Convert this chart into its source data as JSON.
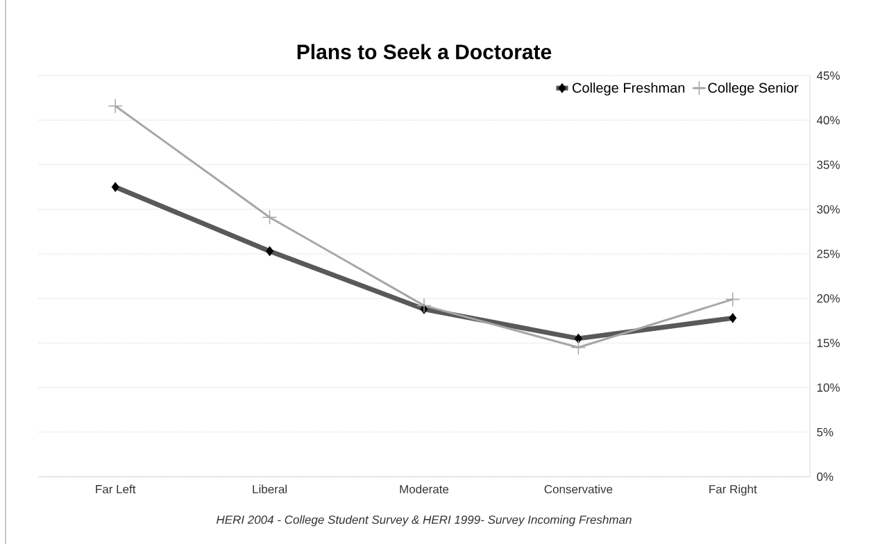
{
  "chart_data": {
    "type": "line",
    "title": "Plans to Seek a Doctorate",
    "categories": [
      "Far Left",
      "Liberal",
      "Moderate",
      "Conservative",
      "Far Right"
    ],
    "series": [
      {
        "name": "College Freshman",
        "color": "#595959",
        "marker": "diamond",
        "values": [
          32.5,
          25.3,
          18.8,
          15.5,
          17.8
        ]
      },
      {
        "name": "College Senior",
        "color": "#a6a6a6",
        "marker": "cross",
        "values": [
          41.6,
          29.1,
          19.2,
          14.5,
          19.9
        ]
      }
    ],
    "ylim": [
      0,
      45
    ],
    "yticks": [
      {
        "value": 0,
        "label": "0%"
      },
      {
        "value": 5,
        "label": "5%"
      },
      {
        "value": 10,
        "label": "10%"
      },
      {
        "value": 15,
        "label": "15%"
      },
      {
        "value": 20,
        "label": "20%"
      },
      {
        "value": 25,
        "label": "25%"
      },
      {
        "value": 30,
        "label": "30%"
      },
      {
        "value": 35,
        "label": "35%"
      },
      {
        "value": 40,
        "label": "40%"
      },
      {
        "value": 45,
        "label": "45%"
      }
    ],
    "grid": "y",
    "legend": "top right",
    "annotations": [
      "*HERI 2004  -  College Student Survey     &   HERI 1999- Survey Incoming Freshman*"
    ]
  }
}
